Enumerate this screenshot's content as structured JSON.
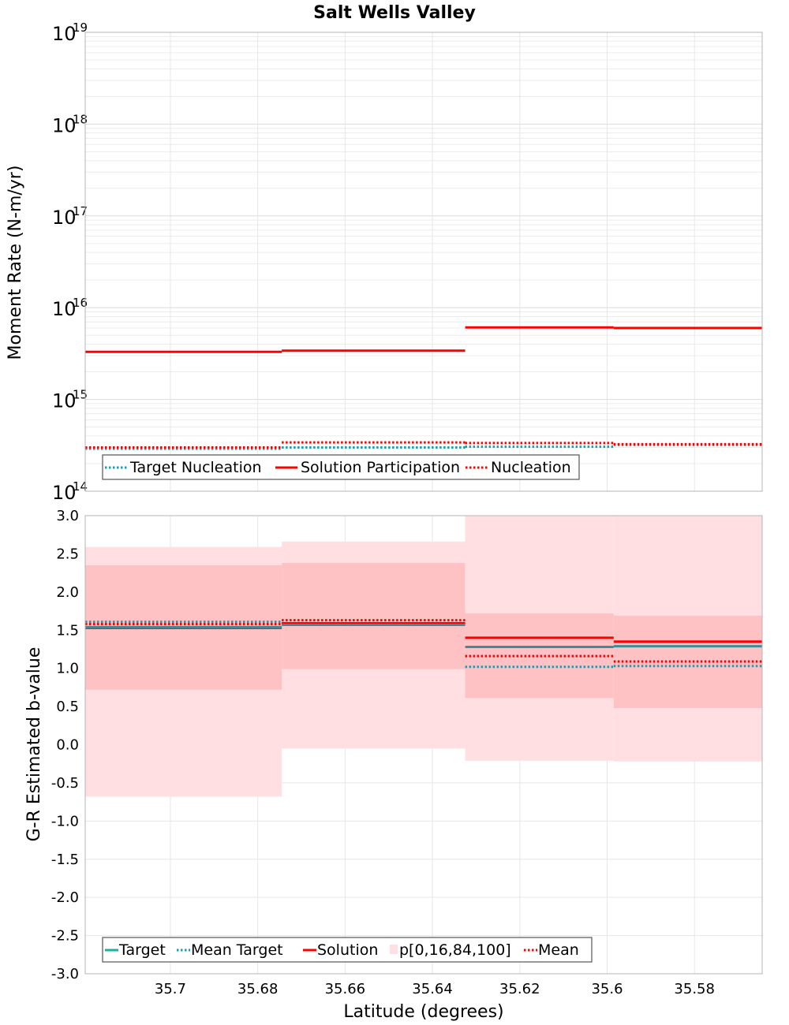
{
  "chart_data": [
    {
      "type": "line",
      "title": "Salt Wells Valley",
      "xlabel": "",
      "ylabel": "Moment Rate (N-m/yr)",
      "yscale": "log",
      "ylim": [
        100000000000000.0,
        1e+19
      ],
      "y_ticks": [
        {
          "base": "10",
          "exp": "14"
        },
        {
          "base": "10",
          "exp": "15"
        },
        {
          "base": "10",
          "exp": "16"
        },
        {
          "base": "10",
          "exp": "17"
        },
        {
          "base": "10",
          "exp": "18"
        },
        {
          "base": "10",
          "exp": "19"
        }
      ],
      "xlim": [
        35.7195,
        35.5645
      ],
      "x_reversed": true,
      "grid": true,
      "legend_position": "bottom-left",
      "step_edges": [
        35.7195,
        35.6745,
        35.6325,
        35.5985,
        35.5645
      ],
      "series": [
        {
          "name": "Target Nucleation",
          "style": "dotted",
          "color": "#14a0b4",
          "values": [
            290000000000000.0,
            300000000000000.0,
            305000000000000.0,
            320000000000000.0
          ]
        },
        {
          "name": "Solution Participation",
          "style": "solid",
          "color": "#ff0000",
          "values": [
            3300000000000000.0,
            3400000000000000.0,
            6100000000000000.0,
            6000000000000000.0
          ]
        },
        {
          "name": "Nucleation",
          "style": "dotted",
          "color": "#ff0000",
          "values": [
            300000000000000.0,
            340000000000000.0,
            335000000000000.0,
            325000000000000.0
          ]
        }
      ]
    },
    {
      "type": "line",
      "title": "",
      "xlabel": "Latitude (degrees)",
      "ylabel": "G-R Estimated b-value",
      "ylim": [
        -3.0,
        3.0
      ],
      "y_ticks": [
        "-3.0",
        "-2.5",
        "-2.0",
        "-1.5",
        "-1.0",
        "-0.5",
        "0.0",
        "0.5",
        "1.0",
        "1.5",
        "2.0",
        "2.5",
        "3.0"
      ],
      "xlim": [
        35.7195,
        35.5645
      ],
      "x_reversed": true,
      "x_ticks": [
        {
          "value": 35.7,
          "label": "35.7"
        },
        {
          "value": 35.68,
          "label": "35.68"
        },
        {
          "value": 35.66,
          "label": "35.66"
        },
        {
          "value": 35.64,
          "label": "35.64"
        },
        {
          "value": 35.62,
          "label": "35.62"
        },
        {
          "value": 35.6,
          "label": "35.6"
        },
        {
          "value": 35.58,
          "label": "35.58"
        }
      ],
      "grid": true,
      "legend_position": "bottom-left",
      "step_edges": [
        35.7195,
        35.6745,
        35.6325,
        35.5985,
        35.5645
      ],
      "bands": {
        "name": "p[0,16,84,100]",
        "outer_color": "#ffdfe1",
        "inner_color": "#ffc2c4",
        "p0": [
          -0.68,
          -0.05,
          -0.21,
          -0.22
        ],
        "p16": [
          0.72,
          0.99,
          0.61,
          0.48
        ],
        "p84": [
          2.35,
          2.38,
          1.72,
          1.69
        ],
        "p100": [
          2.59,
          2.66,
          3.0,
          3.0
        ]
      },
      "series": [
        {
          "name": "Target",
          "style": "solid",
          "color": "#3c8c96",
          "values": [
            1.54,
            1.57,
            1.28,
            1.29
          ]
        },
        {
          "name": "Mean Target",
          "style": "dotted",
          "color": "#14a0b4",
          "values": [
            1.61,
            1.59,
            1.02,
            1.03
          ]
        },
        {
          "name": "Solution",
          "style": "solid",
          "color": "#ff0000",
          "values": [
            1.53,
            1.59,
            1.4,
            1.35
          ]
        },
        {
          "name": "Mean",
          "style": "dotted",
          "color": "#ff0000",
          "values": [
            1.58,
            1.63,
            1.16,
            1.09
          ]
        }
      ]
    }
  ]
}
